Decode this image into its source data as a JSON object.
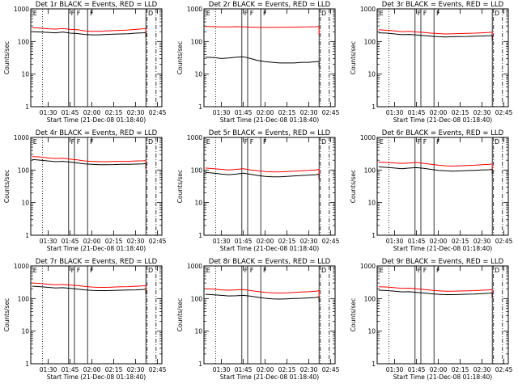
{
  "chart_data": [
    {
      "type": "line",
      "title": "Det 1r BLACK = Events, RED = LLD",
      "ylabel": "Counts/sec",
      "xlabel": "Start Time (21-Dec-08 01:18:40)",
      "ylim": [
        1,
        1000
      ],
      "yscale": "log",
      "x_ticks": [
        "01:30",
        "01:45",
        "02:00",
        "02:15",
        "02:30",
        "02:45"
      ],
      "y_ticks": [
        "1",
        "10",
        "100",
        "1000"
      ],
      "markers": [
        "E",
        "F",
        "F",
        "F",
        "D"
      ],
      "x": [
        "01:19",
        "01:25",
        "01:30",
        "01:35",
        "01:40",
        "01:45",
        "01:50",
        "01:55",
        "02:00",
        "02:05",
        "02:10",
        "02:15",
        "02:20",
        "02:25",
        "02:30",
        "02:35",
        "02:37"
      ],
      "series": [
        {
          "color": "#ff0000",
          "values": [
            265,
            255,
            245,
            240,
            250,
            235,
            230,
            210,
            205,
            205,
            210,
            215,
            220,
            225,
            235,
            245,
            250
          ]
        },
        {
          "color": "#000000",
          "values": [
            200,
            195,
            190,
            185,
            195,
            180,
            175,
            165,
            160,
            160,
            165,
            168,
            170,
            172,
            180,
            185,
            190
          ]
        }
      ]
    },
    {
      "type": "line",
      "title": "Det 2r BLACK = Events, RED = LLD",
      "ylabel": "Counts/sec",
      "xlabel": "Start Time (21-Dec-08 01:18:40)",
      "ylim": [
        1,
        1000
      ],
      "yscale": "log",
      "x_ticks": [
        "01:30",
        "01:45",
        "02:00",
        "02:15",
        "02:30",
        "02:45"
      ],
      "y_ticks": [
        "1",
        "10",
        "100",
        "1000"
      ],
      "markers": [
        "E",
        "F",
        "F",
        "F",
        "D"
      ],
      "x": [
        "01:19",
        "01:25",
        "01:30",
        "01:35",
        "01:40",
        "01:45",
        "01:50",
        "01:55",
        "02:00",
        "02:05",
        "02:10",
        "02:15",
        "02:20",
        "02:25",
        "02:30",
        "02:35",
        "02:37"
      ],
      "series": [
        {
          "color": "#ff0000",
          "values": [
            290,
            285,
            280,
            280,
            285,
            280,
            275,
            270,
            270,
            270,
            272,
            275,
            275,
            278,
            280,
            285,
            290
          ]
        },
        {
          "color": "#000000",
          "values": [
            33,
            32,
            30,
            31,
            33,
            34,
            30,
            26,
            24,
            23,
            22,
            22,
            22,
            23,
            23,
            24,
            24
          ]
        }
      ]
    },
    {
      "type": "line",
      "title": "Det 3r BLACK = Events, RED = LLD",
      "ylabel": "Counts/sec",
      "xlabel": "Start Time (21-Dec-08 01:18:40)",
      "ylim": [
        1,
        1000
      ],
      "yscale": "log",
      "x_ticks": [
        "01:30",
        "01:45",
        "02:00",
        "02:15",
        "02:30",
        "02:45"
      ],
      "y_ticks": [
        "1",
        "10",
        "100",
        "1000"
      ],
      "markers": [
        "E",
        "F",
        "F",
        "F",
        "D"
      ],
      "x": [
        "01:19",
        "01:25",
        "01:30",
        "01:35",
        "01:40",
        "01:45",
        "01:50",
        "01:55",
        "02:00",
        "02:05",
        "02:10",
        "02:15",
        "02:20",
        "02:25",
        "02:30",
        "02:35",
        "02:37"
      ],
      "series": [
        {
          "color": "#ff0000",
          "values": [
            230,
            220,
            210,
            200,
            205,
            195,
            190,
            180,
            175,
            170,
            172,
            175,
            178,
            180,
            185,
            190,
            195
          ]
        },
        {
          "color": "#000000",
          "values": [
            185,
            180,
            170,
            162,
            165,
            158,
            152,
            145,
            140,
            138,
            140,
            142,
            143,
            145,
            148,
            150,
            155
          ]
        }
      ]
    },
    {
      "type": "line",
      "title": "Det 4r BLACK = Events, RED = LLD",
      "ylabel": "Counts/sec",
      "xlabel": "Start Time (21-Dec-08 01:18:40)",
      "ylim": [
        1,
        1000
      ],
      "yscale": "log",
      "x_ticks": [
        "01:30",
        "01:45",
        "02:00",
        "02:15",
        "02:30",
        "02:45"
      ],
      "y_ticks": [
        "1",
        "10",
        "100",
        "1000"
      ],
      "markers": [
        "E",
        "F",
        "F",
        "F",
        "D"
      ],
      "x": [
        "01:19",
        "01:25",
        "01:30",
        "01:35",
        "01:40",
        "01:45",
        "01:50",
        "01:55",
        "02:00",
        "02:05",
        "02:10",
        "02:15",
        "02:20",
        "02:25",
        "02:30",
        "02:35",
        "02:37"
      ],
      "series": [
        {
          "color": "#ff0000",
          "values": [
            260,
            250,
            235,
            225,
            230,
            215,
            205,
            190,
            185,
            180,
            180,
            182,
            185,
            185,
            190,
            192,
            195
          ]
        },
        {
          "color": "#000000",
          "values": [
            210,
            200,
            190,
            180,
            185,
            175,
            165,
            155,
            150,
            145,
            145,
            147,
            150,
            150,
            152,
            155,
            158
          ]
        }
      ]
    },
    {
      "type": "line",
      "title": "Det 5r BLACK = Events, RED = LLD",
      "ylabel": "Counts/sec",
      "xlabel": "Start Time (21-Dec-08 01:18:40)",
      "ylim": [
        1,
        1000
      ],
      "yscale": "log",
      "x_ticks": [
        "01:30",
        "01:45",
        "02:00",
        "02:15",
        "02:30",
        "02:45"
      ],
      "y_ticks": [
        "1",
        "10",
        "100",
        "1000"
      ],
      "markers": [
        "E",
        "F",
        "F",
        "F",
        "D"
      ],
      "x": [
        "01:19",
        "01:25",
        "01:30",
        "01:35",
        "01:40",
        "01:45",
        "01:50",
        "01:55",
        "02:00",
        "02:05",
        "02:10",
        "02:15",
        "02:20",
        "02:25",
        "02:30",
        "02:35",
        "02:37"
      ],
      "series": [
        {
          "color": "#ff0000",
          "values": [
            115,
            110,
            105,
            100,
            105,
            110,
            100,
            95,
            90,
            88,
            88,
            90,
            92,
            95,
            98,
            100,
            105
          ]
        },
        {
          "color": "#000000",
          "values": [
            85,
            80,
            75,
            72,
            75,
            80,
            74,
            68,
            64,
            62,
            62,
            64,
            66,
            68,
            70,
            72,
            75
          ]
        }
      ]
    },
    {
      "type": "line",
      "title": "Det 6r BLACK = Events, RED = LLD",
      "ylabel": "Counts/sec",
      "xlabel": "Start Time (21-Dec-08 01:18:40)",
      "ylim": [
        1,
        1000
      ],
      "yscale": "log",
      "x_ticks": [
        "01:30",
        "01:45",
        "02:00",
        "02:15",
        "02:30",
        "02:45"
      ],
      "y_ticks": [
        "1",
        "10",
        "100",
        "1000"
      ],
      "markers": [
        "E",
        "F",
        "F",
        "F",
        "D"
      ],
      "x": [
        "01:19",
        "01:25",
        "01:30",
        "01:35",
        "01:40",
        "01:45",
        "01:50",
        "01:55",
        "02:00",
        "02:05",
        "02:10",
        "02:15",
        "02:20",
        "02:25",
        "02:30",
        "02:35",
        "02:37"
      ],
      "series": [
        {
          "color": "#ff0000",
          "values": [
            175,
            170,
            165,
            160,
            165,
            170,
            160,
            150,
            140,
            135,
            132,
            135,
            138,
            140,
            145,
            150,
            155
          ]
        },
        {
          "color": "#000000",
          "values": [
            125,
            120,
            115,
            110,
            115,
            118,
            112,
            105,
            98,
            95,
            92,
            94,
            96,
            98,
            100,
            102,
            105
          ]
        }
      ]
    },
    {
      "type": "line",
      "title": "Det 7r BLACK = Events, RED = LLD",
      "ylabel": "Counts/sec",
      "xlabel": "Start Time (21-Dec-08 01:18:40)",
      "ylim": [
        1,
        1000
      ],
      "yscale": "log",
      "x_ticks": [
        "01:30",
        "01:45",
        "02:00",
        "02:15",
        "02:30",
        "02:45"
      ],
      "y_ticks": [
        "1",
        "10",
        "100",
        "1000"
      ],
      "markers": [
        "E",
        "F",
        "F",
        "F",
        "D"
      ],
      "x": [
        "01:19",
        "01:25",
        "01:30",
        "01:35",
        "01:40",
        "01:45",
        "01:50",
        "01:55",
        "02:00",
        "02:05",
        "02:10",
        "02:15",
        "02:20",
        "02:25",
        "02:30",
        "02:35",
        "02:37"
      ],
      "series": [
        {
          "color": "#ff0000",
          "values": [
            300,
            290,
            275,
            265,
            270,
            260,
            250,
            235,
            225,
            220,
            220,
            225,
            230,
            232,
            238,
            245,
            250
          ]
        },
        {
          "color": "#000000",
          "values": [
            240,
            230,
            220,
            210,
            215,
            205,
            195,
            185,
            178,
            175,
            175,
            178,
            180,
            182,
            185,
            190,
            195
          ]
        }
      ]
    },
    {
      "type": "line",
      "title": "Det 8r BLACK = Events, RED = LLD",
      "ylabel": "Counts/sec",
      "xlabel": "Start Time (21-Dec-08 01:18:40)",
      "ylim": [
        1,
        1000
      ],
      "yscale": "log",
      "x_ticks": [
        "01:30",
        "01:45",
        "02:00",
        "02:15",
        "02:30",
        "02:45"
      ],
      "y_ticks": [
        "1",
        "10",
        "100",
        "1000"
      ],
      "markers": [
        "E",
        "F",
        "F",
        "F",
        "D"
      ],
      "x": [
        "01:19",
        "01:25",
        "01:30",
        "01:35",
        "01:40",
        "01:45",
        "01:50",
        "01:55",
        "02:00",
        "02:05",
        "02:10",
        "02:15",
        "02:20",
        "02:25",
        "02:30",
        "02:35",
        "02:37"
      ],
      "series": [
        {
          "color": "#ff0000",
          "values": [
            200,
            195,
            185,
            180,
            185,
            190,
            175,
            165,
            155,
            150,
            148,
            150,
            155,
            158,
            162,
            168,
            175
          ]
        },
        {
          "color": "#000000",
          "values": [
            135,
            130,
            125,
            120,
            122,
            125,
            118,
            110,
            102,
            98,
            96,
            98,
            100,
            102,
            105,
            108,
            112
          ]
        }
      ]
    },
    {
      "type": "line",
      "title": "Det 9r BLACK = Events, RED = LLD",
      "ylabel": "Counts/sec",
      "xlabel": "Start Time (21-Dec-08 01:18:40)",
      "ylim": [
        1,
        1000
      ],
      "yscale": "log",
      "x_ticks": [
        "01:30",
        "01:45",
        "02:00",
        "02:15",
        "02:30",
        "02:45"
      ],
      "y_ticks": [
        "1",
        "10",
        "100",
        "1000"
      ],
      "markers": [
        "E",
        "F",
        "F",
        "F",
        "D"
      ],
      "x": [
        "01:19",
        "01:25",
        "01:30",
        "01:35",
        "01:40",
        "01:45",
        "01:50",
        "01:55",
        "02:00",
        "02:05",
        "02:10",
        "02:15",
        "02:20",
        "02:25",
        "02:30",
        "02:35",
        "02:37"
      ],
      "series": [
        {
          "color": "#ff0000",
          "values": [
            230,
            225,
            215,
            205,
            208,
            200,
            190,
            180,
            172,
            168,
            168,
            170,
            172,
            175,
            180,
            185,
            190
          ]
        },
        {
          "color": "#000000",
          "values": [
            180,
            175,
            168,
            160,
            162,
            155,
            148,
            140,
            135,
            132,
            132,
            134,
            136,
            138,
            142,
            145,
            150
          ]
        }
      ]
    }
  ]
}
